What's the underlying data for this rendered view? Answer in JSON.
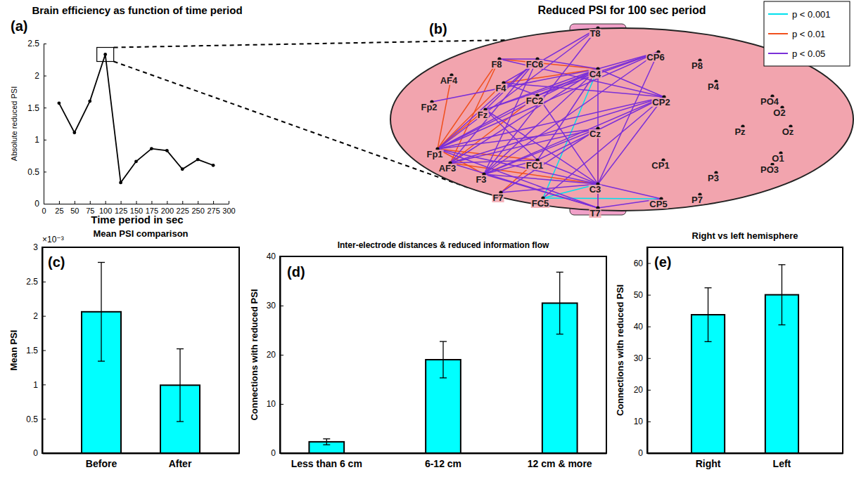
{
  "chart_data": [
    {
      "type": "line",
      "panel_label": "(a)",
      "title": "Brain efficiency as function of time period",
      "x_label": "Time period in sec",
      "y_label": "Absolute reduced PSI",
      "x": [
        25,
        50,
        75,
        100,
        125,
        150,
        175,
        200,
        225,
        250,
        275
      ],
      "values": [
        1.57,
        1.11,
        1.6,
        2.33,
        0.33,
        0.66,
        0.86,
        0.83,
        0.54,
        0.69,
        0.6
      ],
      "color": "#000000",
      "marker": "dot",
      "xlim": [
        0,
        300
      ],
      "xticks": [
        0,
        25,
        50,
        75,
        100,
        125,
        150,
        175,
        200,
        225,
        250,
        275,
        300
      ],
      "ylim": [
        0,
        2.5
      ],
      "yticks": [
        0,
        0.5,
        1,
        1.5,
        2,
        2.5
      ]
    },
    {
      "type": "network",
      "panel_label": "(b)",
      "title": "Reduced PSI for 100 sec period",
      "nodes": [
        "Fp1",
        "AF3",
        "F7",
        "F3",
        "FC5",
        "FC1",
        "T7",
        "C3",
        "Cz",
        "CP5",
        "CP1",
        "P7",
        "P3",
        "Pz",
        "PO3",
        "O1",
        "Oz",
        "O2",
        "PO4",
        "P4",
        "P8",
        "CP6",
        "CP2",
        "C4",
        "T8",
        "FC6",
        "FC2",
        "F4",
        "F8",
        "AF4",
        "Fp2",
        "Fz"
      ],
      "series": [
        {
          "name": "p < 0.001",
          "color": "#00e0ee",
          "edges": [
            [
              "FC5",
              "C4"
            ],
            [
              "FC5",
              "CP5"
            ],
            [
              "FC5",
              "C3"
            ]
          ]
        },
        {
          "name": "p < 0.01",
          "color": "#f0501e",
          "edges": [
            [
              "Fp1",
              "F8"
            ],
            [
              "Fp1",
              "F4"
            ],
            [
              "Fp1",
              "AF4"
            ],
            [
              "Fp1",
              "Fz"
            ],
            [
              "Fp1",
              "FC1"
            ],
            [
              "Fp1",
              "F3"
            ],
            [
              "AF3",
              "FC2"
            ],
            [
              "AF3",
              "C3"
            ],
            [
              "F4",
              "C4"
            ],
            [
              "F8",
              "C4"
            ],
            [
              "Cz",
              "C3"
            ],
            [
              "F7",
              "FC1"
            ],
            [
              "AF3",
              "F8"
            ],
            [
              "Cz",
              "T7"
            ]
          ]
        },
        {
          "name": "p < 0.05",
          "color": "#7a2fd8",
          "edges": [
            [
              "Fp1",
              "FC6"
            ],
            [
              "Fp1",
              "C4"
            ],
            [
              "Fp1",
              "FC2"
            ],
            [
              "Fp1",
              "CP2"
            ],
            [
              "Fp1",
              "Cz"
            ],
            [
              "Fp1",
              "C3"
            ],
            [
              "Fp1",
              "T7"
            ],
            [
              "Fp1",
              "CP6"
            ],
            [
              "Fp1",
              "T8"
            ],
            [
              "AF3",
              "C4"
            ],
            [
              "AF3",
              "FC6"
            ],
            [
              "AF3",
              "CP2"
            ],
            [
              "AF3",
              "Cz"
            ],
            [
              "AF3",
              "FC1"
            ],
            [
              "AF3",
              "T7"
            ],
            [
              "F3",
              "C4"
            ],
            [
              "F3",
              "FC6"
            ],
            [
              "F3",
              "CP2"
            ],
            [
              "F3",
              "Cz"
            ],
            [
              "F3",
              "FC1"
            ],
            [
              "F3",
              "C3"
            ],
            [
              "F3",
              "T7"
            ],
            [
              "F3",
              "CP6"
            ],
            [
              "F3",
              "T8"
            ],
            [
              "Fz",
              "C4"
            ],
            [
              "Fz",
              "CP6"
            ],
            [
              "Fz",
              "FC1"
            ],
            [
              "Fz",
              "C3"
            ],
            [
              "F4",
              "FC2"
            ],
            [
              "F4",
              "CP2"
            ],
            [
              "F4",
              "T8"
            ],
            [
              "F8",
              "FC6"
            ],
            [
              "F8",
              "CP2"
            ],
            [
              "FC6",
              "C4"
            ],
            [
              "FC6",
              "Fz"
            ],
            [
              "FC2",
              "C4"
            ],
            [
              "FC2",
              "C3"
            ],
            [
              "FC2",
              "CP6"
            ],
            [
              "C4",
              "CP6"
            ],
            [
              "C4",
              "CP2"
            ],
            [
              "C4",
              "C3"
            ],
            [
              "C4",
              "FC1"
            ],
            [
              "C3",
              "CP2"
            ],
            [
              "C3",
              "CP6"
            ],
            [
              "C3",
              "T7"
            ],
            [
              "FC1",
              "CP2"
            ],
            [
              "FC1",
              "C3"
            ],
            [
              "F7",
              "C3"
            ],
            [
              "F7",
              "Cz"
            ],
            [
              "FC5",
              "CP2"
            ],
            [
              "T7",
              "CP5"
            ],
            [
              "CP5",
              "C3"
            ],
            [
              "Fp2",
              "C4"
            ]
          ]
        }
      ],
      "legend": "top-right"
    },
    {
      "type": "bar",
      "panel_label": "(c)",
      "title": "Mean PSI comparison",
      "y_label": "Mean PSI",
      "annotation": "×10⁻³",
      "categories": [
        "Before",
        "After"
      ],
      "values": [
        2.06,
        0.99
      ],
      "errors": [
        0.72,
        0.53
      ],
      "color": "#00ffff",
      "ylim": [
        0,
        3
      ],
      "yticks": [
        0,
        0.5,
        1,
        1.5,
        2,
        2.5,
        3
      ]
    },
    {
      "type": "bar",
      "panel_label": "(d)",
      "title": "Inter-electrode distances & reduced information flow",
      "y_label": "Connections with reduced PSI",
      "categories": [
        "Less than 6 cm",
        "6-12 cm",
        "12 cm & more"
      ],
      "values": [
        2.3,
        19,
        30.5
      ],
      "errors": [
        0.6,
        3.7,
        6.3
      ],
      "color": "#00ffff",
      "ylim": [
        0,
        40
      ],
      "yticks": [
        0,
        10,
        20,
        30,
        40
      ]
    },
    {
      "type": "bar",
      "panel_label": "(e)",
      "title": "Right vs left hemisphere",
      "y_label": "Connections with reduced PSI",
      "categories": [
        "Right",
        "Left"
      ],
      "values": [
        43.7,
        50
      ],
      "errors": [
        8.5,
        9.5
      ],
      "color": "#00ffff",
      "ylim": [
        0,
        65
      ],
      "yticks": [
        0,
        10,
        20,
        30,
        40,
        50,
        60
      ]
    }
  ]
}
